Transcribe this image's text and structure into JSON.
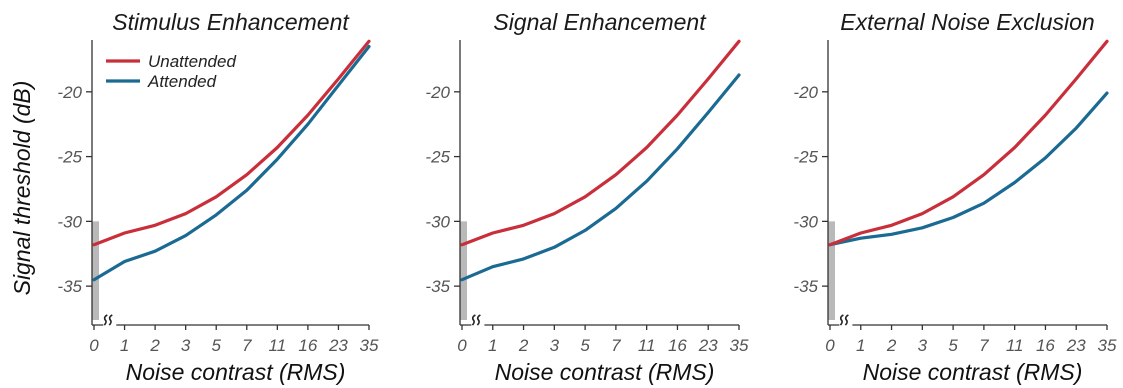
{
  "figure": {
    "ylabel": "Signal threshold (dB)",
    "xlabel": "Noise contrast (RMS)",
    "legend": {
      "placement": "top-left of first panel",
      "entries": [
        "Unattended",
        "Attended"
      ]
    }
  },
  "colors": {
    "unattended": "#c92f3b",
    "attended": "#1a6a93",
    "axis": "#333333",
    "break_band": "#b9b9b9"
  },
  "chart_data": [
    {
      "type": "line",
      "title": "Stimulus Enhancement",
      "xlabel": "Noise contrast (RMS)",
      "ylabel": "Signal threshold (dB)",
      "x_axis_scale": "ordinal",
      "categories": [
        "0",
        "1",
        "2",
        "3",
        "5",
        "7",
        "11",
        "16",
        "23",
        "35"
      ],
      "ylim": [
        -38,
        -16
      ],
      "yticks": [
        -35,
        -30,
        -25,
        -20
      ],
      "axis_break_after": "0",
      "series": [
        {
          "name": "Unattended",
          "color": "#c92f3b",
          "values": [
            -31.8,
            -30.9,
            -30.3,
            -29.4,
            -28.1,
            -26.4,
            -24.3,
            -21.8,
            -19.0,
            -16.1
          ]
        },
        {
          "name": "Attended",
          "color": "#1a6a93",
          "values": [
            -34.5,
            -33.1,
            -32.3,
            -31.1,
            -29.5,
            -27.6,
            -25.2,
            -22.5,
            -19.5,
            -16.5
          ]
        }
      ]
    },
    {
      "type": "line",
      "title": "Signal Enhancement",
      "xlabel": "Noise contrast (RMS)",
      "ylabel": "Signal threshold (dB)",
      "x_axis_scale": "ordinal",
      "categories": [
        "0",
        "1",
        "2",
        "3",
        "5",
        "7",
        "11",
        "16",
        "23",
        "35"
      ],
      "ylim": [
        -38,
        -16
      ],
      "yticks": [
        -35,
        -30,
        -25,
        -20
      ],
      "axis_break_after": "0",
      "series": [
        {
          "name": "Unattended",
          "color": "#c92f3b",
          "values": [
            -31.8,
            -30.9,
            -30.3,
            -29.4,
            -28.1,
            -26.4,
            -24.3,
            -21.8,
            -19.0,
            -16.1
          ]
        },
        {
          "name": "Attended",
          "color": "#1a6a93",
          "values": [
            -34.5,
            -33.5,
            -32.9,
            -32.0,
            -30.7,
            -29.0,
            -26.9,
            -24.4,
            -21.6,
            -18.7
          ]
        }
      ]
    },
    {
      "type": "line",
      "title": "External Noise Exclusion",
      "xlabel": "Noise contrast (RMS)",
      "ylabel": "Signal threshold (dB)",
      "x_axis_scale": "ordinal",
      "categories": [
        "0",
        "1",
        "2",
        "3",
        "5",
        "7",
        "11",
        "16",
        "23",
        "35"
      ],
      "ylim": [
        -38,
        -16
      ],
      "yticks": [
        -35,
        -30,
        -25,
        -20
      ],
      "axis_break_after": "0",
      "series": [
        {
          "name": "Unattended",
          "color": "#c92f3b",
          "values": [
            -31.8,
            -30.9,
            -30.3,
            -29.4,
            -28.1,
            -26.4,
            -24.3,
            -21.8,
            -19.0,
            -16.1
          ]
        },
        {
          "name": "Attended",
          "color": "#1a6a93",
          "values": [
            -31.8,
            -31.3,
            -31.0,
            -30.5,
            -29.7,
            -28.6,
            -27.0,
            -25.1,
            -22.8,
            -20.1
          ]
        }
      ]
    }
  ]
}
